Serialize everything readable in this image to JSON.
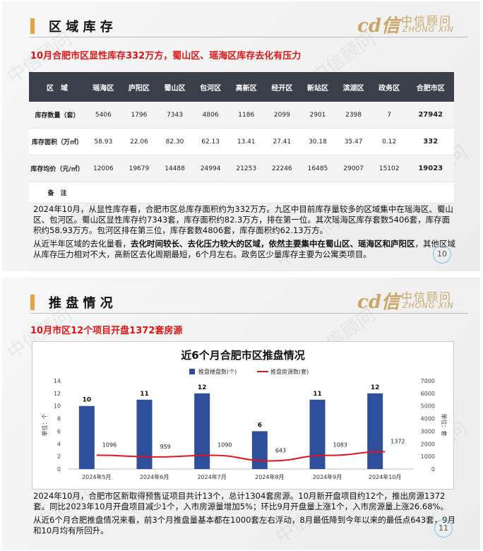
{
  "watermark": "中信顾问",
  "logo": {
    "name": "中信顾问",
    "pinyin": "ZHONG XIN"
  },
  "slides": [
    {
      "header": "区 域 库 存",
      "subtitle": "10月合肥市区显性库存332万方，蜀山区、瑶海区库存去化有压力",
      "table": {
        "header": [
          "区　域",
          "瑶海区",
          "庐阳区",
          "蜀山区",
          "包河区",
          "高新区",
          "经开区",
          "新站区",
          "滨湖区",
          "政务区",
          "合肥市区"
        ],
        "rows": [
          [
            "库存数量（套）",
            "5406",
            "1796",
            "7343",
            "4806",
            "1186",
            "2099",
            "2901",
            "2398",
            "7",
            "27942"
          ],
          [
            "库存面积（万㎡）",
            "58.93",
            "22.06",
            "82.30",
            "62.13",
            "13.41",
            "27.41",
            "30.18",
            "35.47",
            "0.12",
            "332"
          ],
          [
            "库存均价（元/㎡）",
            "12006",
            "19679",
            "14488",
            "24994",
            "21253",
            "22246",
            "16485",
            "29007",
            "15102",
            "19023"
          ],
          [
            "备　注"
          ]
        ]
      },
      "paragraphs": [
        [
          "2024年10月，从显性库存看，合肥市区总库存面积约为332万方。九区中目前库存量较多的区域集中在瑶海区、蜀山区、包河区。蜀山区显性库存约7343套，库存面积约82.3万方，排在第一位。其次瑶海区库存套数5406套，库存面积约58.93万方。包河区排在第三位，库存套数4806套，库存面积约62.13万方。"
        ],
        [
          "从近半年区域的去化量看，",
          "去化时间较长、去化压力较大的区域，依然主要集中在蜀山区、瑶海区和庐阳区",
          "，其他区域从库存压力相对不大，高新区去化周期最短，6个月左右。政务区少量库存主要为公寓类项目。"
        ]
      ],
      "page": "10"
    },
    {
      "header": "推 盘 情 况",
      "subtitle": "10月市区12个项目开盘1372套房源",
      "paragraphs": [
        [
          "2024年10月，合肥市区新取得预售证项目共计13个，总计1304套房源。10月新开盘项目约12个，推出房源1372套。同比2023年10月开盘项目减少1个，入市房源量增加5%；环比9月开盘量上涨1个，入市房源量上涨26.68%。"
        ],
        [
          "从近6个月合肥推盘情况来看，前3个月推盘量基本都在1000套左右浮动，8月最低降到今年以来的最低点643套，9月和10月均有所回升。"
        ]
      ],
      "page": "11"
    }
  ],
  "chart_data": {
    "type": "bar",
    "title": "近6个月合肥市区推盘情况",
    "legend": "top",
    "categories": [
      "2024年5月",
      "2024年6月",
      "2024年7月",
      "2024年8月",
      "2024年9月",
      "2024年10月"
    ],
    "series": [
      {
        "name": "推盘楼盘数(个)",
        "type": "bar",
        "color": "#2e4f9b",
        "values": [
          10,
          11,
          12,
          6,
          11,
          12
        ]
      },
      {
        "name": "推盘房源数(套)",
        "type": "line",
        "color": "#e3141c",
        "axis": "y2",
        "values": [
          1096,
          959,
          1090,
          643,
          1083,
          1372
        ]
      }
    ],
    "ylim": [
      0,
      14
    ],
    "yticks": [
      0,
      2,
      4,
      6,
      8,
      10,
      12,
      14
    ],
    "y2lim": [
      0,
      7000
    ],
    "y2ticks": [
      0,
      1000,
      2000,
      3000,
      4000,
      5000,
      6000,
      7000
    ],
    "ylabel": "单位：个",
    "y2label": "单位：套",
    "grid": false
  }
}
